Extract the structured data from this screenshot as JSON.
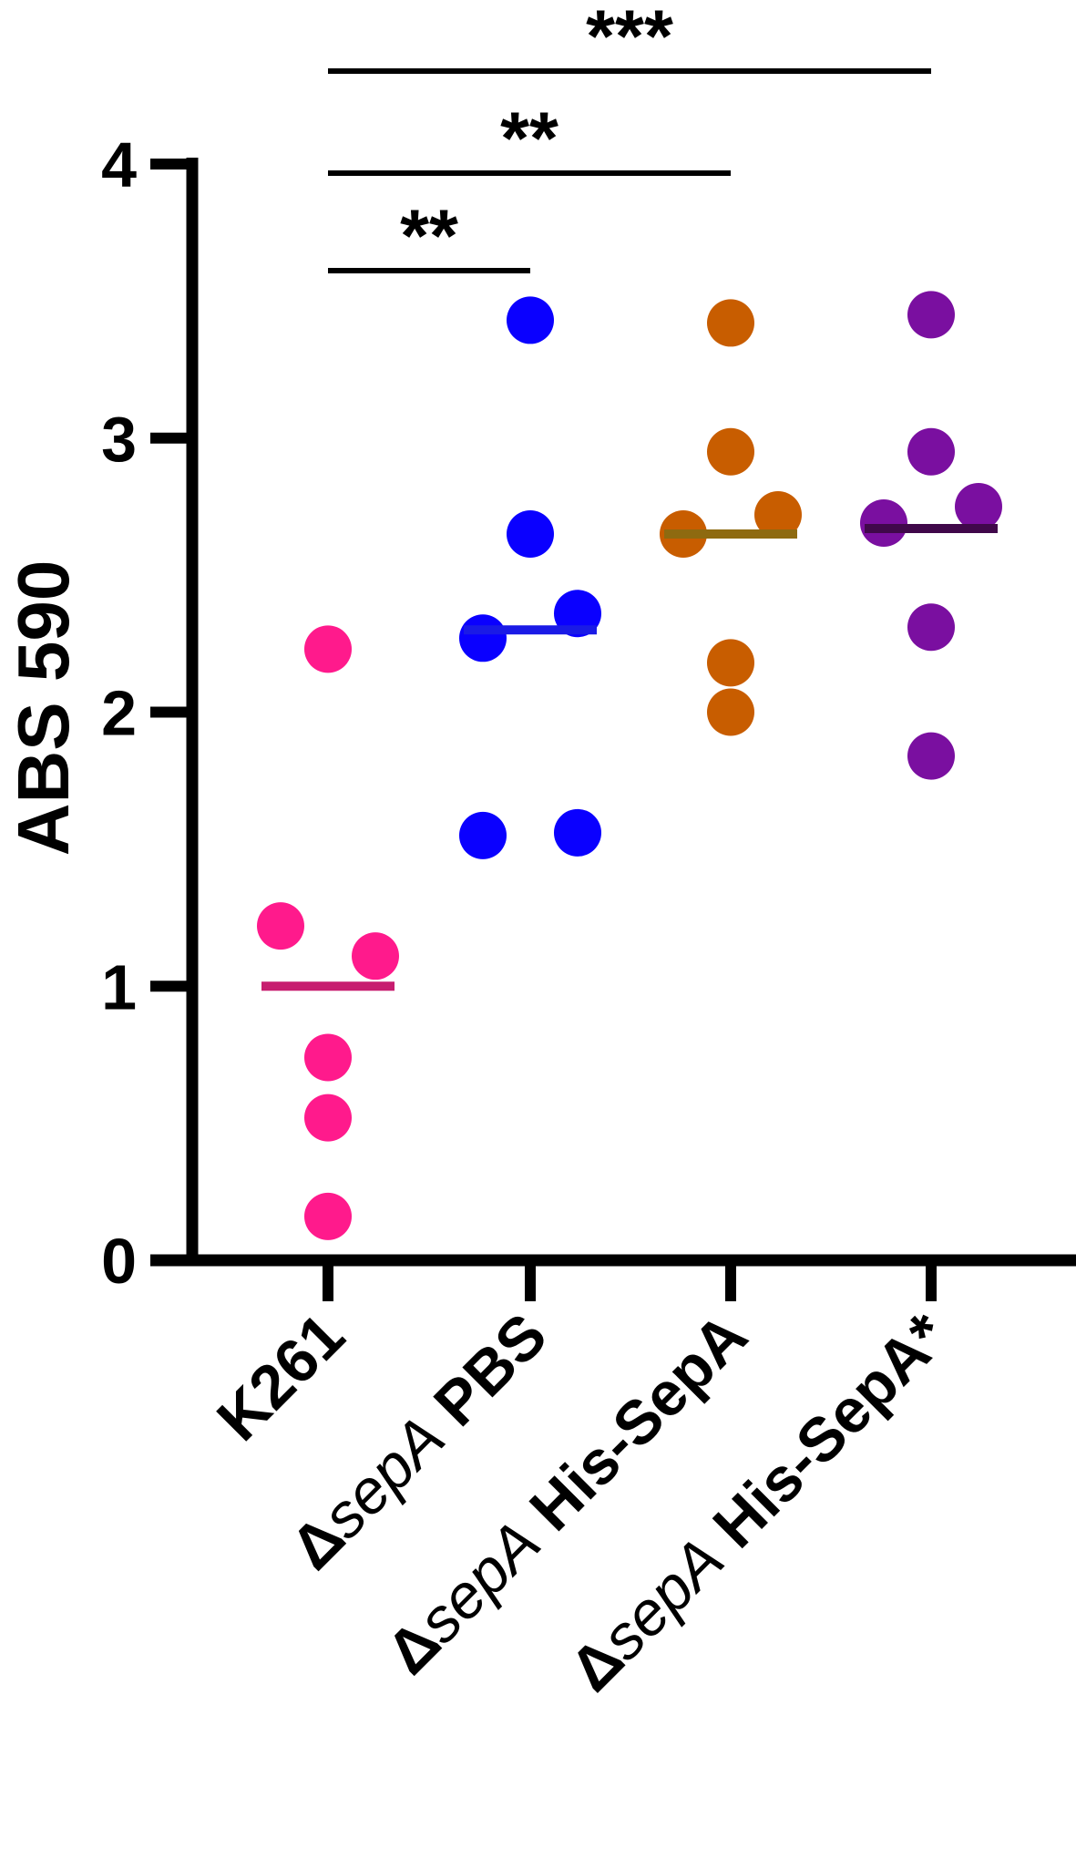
{
  "chart_data": {
    "type": "scatter",
    "ylabel": "ABS 590",
    "xlabel": "",
    "ylim": [
      0,
      4
    ],
    "yticks": [
      "0",
      "1",
      "2",
      "3",
      "4"
    ],
    "categories": [
      {
        "delta": "",
        "italic": "",
        "rest": "K261"
      },
      {
        "delta": "Δ",
        "italic": "sepA",
        "rest": " PBS"
      },
      {
        "delta": "Δ",
        "italic": "sepA",
        "rest": " His-SepA"
      },
      {
        "delta": "Δ",
        "italic": "sepA",
        "rest": " His-SepA*"
      }
    ],
    "series": [
      {
        "points": [
          2.23,
          1.22,
          1.11,
          0.74,
          0.52,
          0.16
        ],
        "mean": 1.0,
        "color": "#FF1A8C",
        "line_color": "#C71D6F"
      },
      {
        "points": [
          3.43,
          2.65,
          2.36,
          2.27,
          1.56,
          1.55
        ],
        "mean": 2.3,
        "color": "#0A00FF",
        "line_color": "#1A1AE6"
      },
      {
        "points": [
          3.42,
          2.95,
          2.72,
          2.65,
          2.18,
          2.0
        ],
        "mean": 2.65,
        "color": "#C85D00",
        "line_color": "#8E6A10"
      },
      {
        "points": [
          3.45,
          2.95,
          2.75,
          2.69,
          2.31,
          1.84
        ],
        "mean": 2.67,
        "color": "#7A0FA0",
        "line_color": "#40084A"
      }
    ],
    "significance": [
      {
        "from": 0,
        "to": 1,
        "label": "**"
      },
      {
        "from": 0,
        "to": 2,
        "label": "**"
      },
      {
        "from": 0,
        "to": 3,
        "label": "***"
      }
    ],
    "grid": false
  }
}
